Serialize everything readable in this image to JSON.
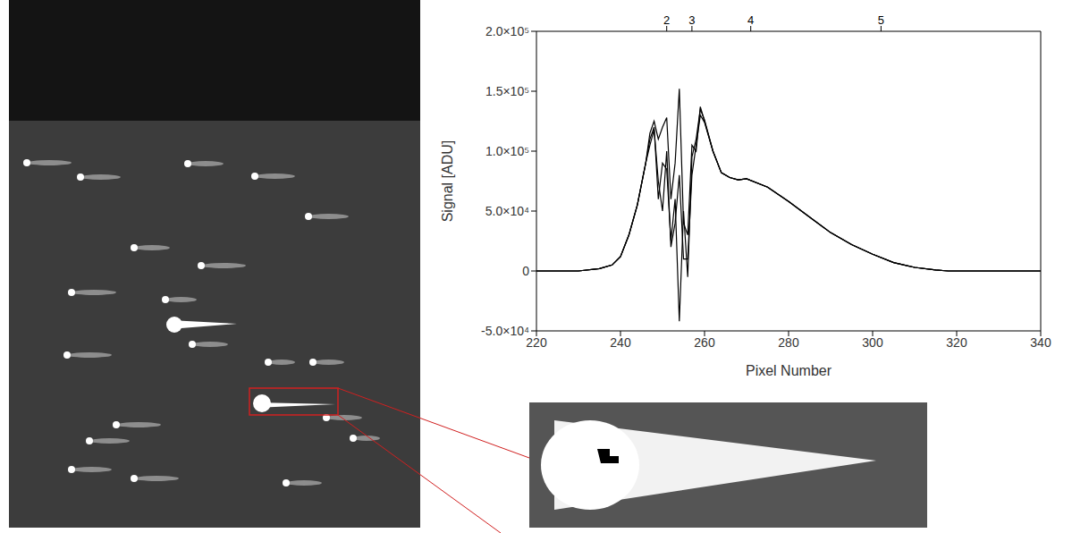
{
  "chart_data": {
    "type": "line",
    "x_label": "Pixel Number",
    "y_label": "Signal [ADU]",
    "x": [
      220,
      225,
      230,
      235,
      238,
      240,
      242,
      244,
      246,
      247,
      248,
      249,
      250,
      251,
      252,
      253,
      254,
      255,
      256,
      257,
      258,
      259,
      260,
      262,
      264,
      266,
      268,
      270,
      275,
      280,
      285,
      290,
      295,
      300,
      305,
      310,
      315,
      318,
      320,
      330,
      340
    ],
    "series": [
      {
        "color": "#000000",
        "values": [
          0,
          0,
          0,
          2000,
          5000,
          12000,
          30000,
          55000,
          90000,
          115000,
          125000,
          110000,
          120000,
          128000,
          60000,
          90000,
          152000,
          40000,
          30000,
          105000,
          100000,
          137000,
          125000,
          100000,
          82000,
          78000,
          76000,
          77000,
          70000,
          58000,
          45000,
          32000,
          22000,
          14000,
          7000,
          3000,
          800,
          0,
          0,
          0,
          0
        ]
      },
      {
        "color": "#000000",
        "values": [
          0,
          0,
          0,
          2000,
          5000,
          12000,
          30000,
          55000,
          90000,
          110000,
          120000,
          60000,
          90000,
          85000,
          25000,
          60000,
          -42000,
          50000,
          -5000,
          95000,
          110000,
          135000,
          126000,
          100000,
          82000,
          78000,
          76000,
          77000,
          70000,
          58000,
          45000,
          32000,
          22000,
          14000,
          7000,
          3000,
          800,
          0,
          0,
          0,
          0
        ]
      },
      {
        "color": "#000000",
        "values": [
          0,
          0,
          0,
          2000,
          5000,
          12000,
          30000,
          55000,
          90000,
          105000,
          118000,
          75000,
          50000,
          100000,
          20000,
          40000,
          80000,
          10000,
          10000,
          80000,
          105000,
          130000,
          124000,
          100000,
          82000,
          78000,
          76000,
          77000,
          70000,
          58000,
          45000,
          32000,
          22000,
          14000,
          7000,
          3000,
          800,
          0,
          0,
          0,
          0
        ]
      }
    ],
    "xlim": [
      220,
      340
    ],
    "xticks": [
      220,
      240,
      260,
      280,
      300,
      320,
      340
    ],
    "x2ticks": [
      {
        "value": 251,
        "label": "2"
      },
      {
        "value": 257,
        "label": "3"
      },
      {
        "value": 271,
        "label": "4"
      },
      {
        "value": 302,
        "label": "5"
      }
    ],
    "ylim": [
      -50000,
      200000
    ],
    "yticks": [
      {
        "value": -50000,
        "label": "-5.0×10⁴"
      },
      0,
      {
        "value": 50000,
        "label": "5.0×10⁴"
      },
      {
        "value": 100000,
        "label": "1.0×10⁵"
      },
      {
        "value": 150000,
        "label": "1.5×10⁵"
      },
      {
        "value": 200000,
        "label": "2.0×10⁵"
      }
    ]
  }
}
